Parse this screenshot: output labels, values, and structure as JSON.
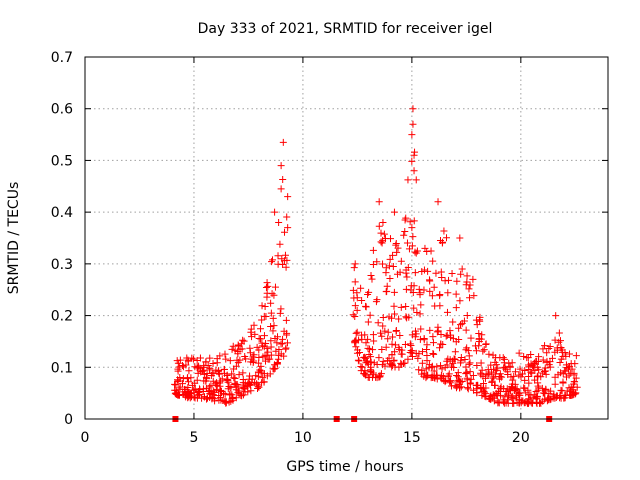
{
  "chart_data": {
    "type": "scatter",
    "title": "Day 333 of 2021, SRMTID for receiver igel",
    "xlabel": "GPS time / hours",
    "ylabel": "SRMTID / TECUs",
    "xlim": [
      0,
      24
    ],
    "ylim": [
      0,
      0.7
    ],
    "xticks": [
      0,
      5,
      10,
      15,
      20
    ],
    "yticks": [
      0,
      0.1,
      0.2,
      0.3,
      0.4,
      0.5,
      0.6,
      0.7
    ],
    "grid": true,
    "series_color": "#ff0000",
    "marker": "+",
    "gap_markers_x": [
      4.15,
      11.55,
      12.35,
      21.3
    ],
    "envelope": [
      {
        "x": 4.1,
        "lo": 0.05,
        "hi": 0.11
      },
      {
        "x": 4.5,
        "lo": 0.04,
        "hi": 0.12
      },
      {
        "x": 5.0,
        "lo": 0.04,
        "hi": 0.12
      },
      {
        "x": 5.5,
        "lo": 0.04,
        "hi": 0.12
      },
      {
        "x": 6.0,
        "lo": 0.03,
        "hi": 0.12
      },
      {
        "x": 6.5,
        "lo": 0.03,
        "hi": 0.13
      },
      {
        "x": 7.0,
        "lo": 0.04,
        "hi": 0.15
      },
      {
        "x": 7.5,
        "lo": 0.05,
        "hi": 0.17
      },
      {
        "x": 8.0,
        "lo": 0.06,
        "hi": 0.2
      },
      {
        "x": 8.5,
        "lo": 0.08,
        "hi": 0.3
      },
      {
        "x": 8.8,
        "lo": 0.1,
        "hi": 0.38
      },
      {
        "x": 9.1,
        "lo": 0.12,
        "hi": 0.48
      },
      {
        "x": 9.3,
        "lo": 0.14,
        "hi": 0.44
      },
      {
        "x": 12.3,
        "lo": 0.15,
        "hi": 0.3
      },
      {
        "x": 12.7,
        "lo": 0.09,
        "hi": 0.25
      },
      {
        "x": 13.0,
        "lo": 0.08,
        "hi": 0.28
      },
      {
        "x": 13.5,
        "lo": 0.08,
        "hi": 0.4
      },
      {
        "x": 14.0,
        "lo": 0.1,
        "hi": 0.38
      },
      {
        "x": 14.5,
        "lo": 0.1,
        "hi": 0.32
      },
      {
        "x": 15.0,
        "lo": 0.12,
        "hi": 0.6
      },
      {
        "x": 15.5,
        "lo": 0.08,
        "hi": 0.33
      },
      {
        "x": 16.0,
        "lo": 0.08,
        "hi": 0.34
      },
      {
        "x": 16.5,
        "lo": 0.07,
        "hi": 0.38
      },
      {
        "x": 17.0,
        "lo": 0.06,
        "hi": 0.28
      },
      {
        "x": 17.5,
        "lo": 0.06,
        "hi": 0.3
      },
      {
        "x": 18.0,
        "lo": 0.05,
        "hi": 0.24
      },
      {
        "x": 18.5,
        "lo": 0.04,
        "hi": 0.14
      },
      {
        "x": 19.0,
        "lo": 0.03,
        "hi": 0.13
      },
      {
        "x": 19.5,
        "lo": 0.03,
        "hi": 0.12
      },
      {
        "x": 20.0,
        "lo": 0.03,
        "hi": 0.13
      },
      {
        "x": 20.5,
        "lo": 0.03,
        "hi": 0.13
      },
      {
        "x": 21.0,
        "lo": 0.03,
        "hi": 0.14
      },
      {
        "x": 21.5,
        "lo": 0.04,
        "hi": 0.2
      },
      {
        "x": 22.0,
        "lo": 0.04,
        "hi": 0.14
      },
      {
        "x": 22.6,
        "lo": 0.05,
        "hi": 0.13
      }
    ],
    "peaks": [
      {
        "x": 9.1,
        "y": 0.535
      },
      {
        "x": 9.0,
        "y": 0.49
      },
      {
        "x": 9.0,
        "y": 0.445
      },
      {
        "x": 9.3,
        "y": 0.43
      },
      {
        "x": 8.7,
        "y": 0.4
      },
      {
        "x": 9.3,
        "y": 0.37
      },
      {
        "x": 15.05,
        "y": 0.6
      },
      {
        "x": 15.05,
        "y": 0.57
      },
      {
        "x": 15.0,
        "y": 0.55
      },
      {
        "x": 15.1,
        "y": 0.51
      },
      {
        "x": 15.1,
        "y": 0.48
      },
      {
        "x": 15.0,
        "y": 0.37
      },
      {
        "x": 13.5,
        "y": 0.42
      },
      {
        "x": 14.2,
        "y": 0.4
      },
      {
        "x": 16.2,
        "y": 0.42
      },
      {
        "x": 17.2,
        "y": 0.35
      },
      {
        "x": 12.4,
        "y": 0.3
      },
      {
        "x": 21.6,
        "y": 0.2
      },
      {
        "x": 15.6,
        "y": 0.33
      },
      {
        "x": 17.8,
        "y": 0.27
      }
    ]
  }
}
